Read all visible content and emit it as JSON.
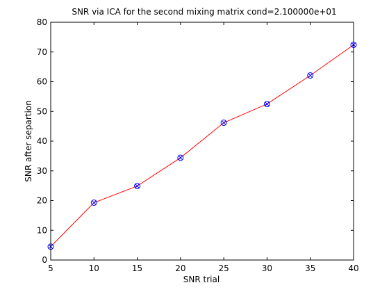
{
  "chart_data": {
    "type": "line",
    "title": "SNR via ICA for the second mixing matrix cond=2.100000e+01",
    "xlabel": "SNR trial",
    "ylabel": "SNR after separtion",
    "xlim": [
      5,
      40
    ],
    "ylim": [
      0,
      80
    ],
    "xticks": [
      "5",
      "10",
      "15",
      "20",
      "25",
      "30",
      "35",
      "40"
    ],
    "yticks": [
      "0",
      "10",
      "20",
      "30",
      "40",
      "50",
      "60",
      "70",
      "80"
    ],
    "grid": false,
    "legend": "none",
    "series": [
      {
        "x": [
          5,
          10,
          15,
          20,
          25,
          30,
          35,
          40
        ],
        "values": [
          4.5,
          19.3,
          24.9,
          34.4,
          46.2,
          52.5,
          62.1,
          72.4
        ],
        "line_color": "#ff0000",
        "marker_color": "#0000ff",
        "marker": "circle-x"
      }
    ]
  }
}
